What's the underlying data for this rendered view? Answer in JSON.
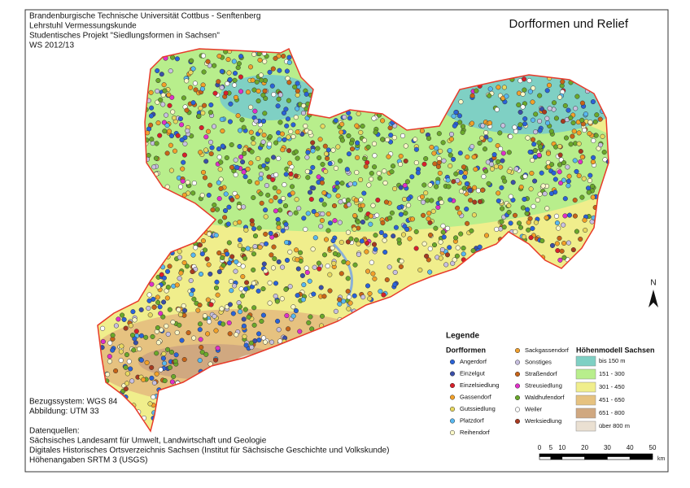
{
  "header": {
    "lines": [
      "Brandenburgische Technische Universität Cottbus - Senftenberg",
      "Lehrstuhl Vermessungskunde",
      "Studentisches Projekt \"Siedlungsformen in Sachsen\"",
      "WS 2012/13"
    ]
  },
  "title": "Dorfformen und Relief",
  "legend": {
    "title": "Legende",
    "dorfformen": {
      "title": "Dorfformen",
      "items": [
        {
          "label": "Angerdorf",
          "color": "#2a63d8"
        },
        {
          "label": "Einzelgut",
          "color": "#3a4fa8"
        },
        {
          "label": "Einzelsiedlung",
          "color": "#d8202a"
        },
        {
          "label": "Gassendorf",
          "color": "#f2a028"
        },
        {
          "label": "Gutssiedlung",
          "color": "#e8d860"
        },
        {
          "label": "Platzdorf",
          "color": "#58b8f0"
        },
        {
          "label": "Reihendorf",
          "color": "#fbf8c8"
        },
        {
          "label": "Sackgassendorf",
          "color": "#f0a030"
        },
        {
          "label": "Sonstiges",
          "color": "#c8c0e0"
        },
        {
          "label": "Straßendorf",
          "color": "#c86418"
        },
        {
          "label": "Streusiedlung",
          "color": "#e030c8"
        },
        {
          "label": "Waldhufendorf",
          "color": "#6aa82a"
        },
        {
          "label": "Weiler",
          "color": "#ffffff"
        },
        {
          "label": "Werksiedlung",
          "color": "#a83a20"
        }
      ]
    },
    "hoehenmodell": {
      "title": "Höhenmodell Sachsen",
      "items": [
        {
          "label": "bis 150 m",
          "color": "#7fd0c4"
        },
        {
          "label": "151 - 300",
          "color": "#b8ee8c"
        },
        {
          "label": "301 - 450",
          "color": "#f0ee8c"
        },
        {
          "label": "451 - 650",
          "color": "#e6c280"
        },
        {
          "label": "651 - 800",
          "color": "#d0a880"
        },
        {
          "label": "über 800 m",
          "color": "#eae0d2"
        }
      ]
    }
  },
  "scale_bar": {
    "ticks": [
      0,
      5,
      10,
      20,
      30,
      40,
      50
    ],
    "unit": "km"
  },
  "north": "N",
  "info": {
    "reference": [
      "Bezugssystem: WGS 84",
      "Abbildung: UTM 33"
    ],
    "sources_title": "Datenquellen:",
    "sources": [
      "Sächsisches Landesamt für Umwelt, Landwirtschaft und Geologie",
      "Digitales Historisches Ortsverzeichnis Sachsen (Institut für Sächsische Geschichte und Volkskunde)",
      "Höhenangaben SRTM 3 (USGS)"
    ]
  }
}
